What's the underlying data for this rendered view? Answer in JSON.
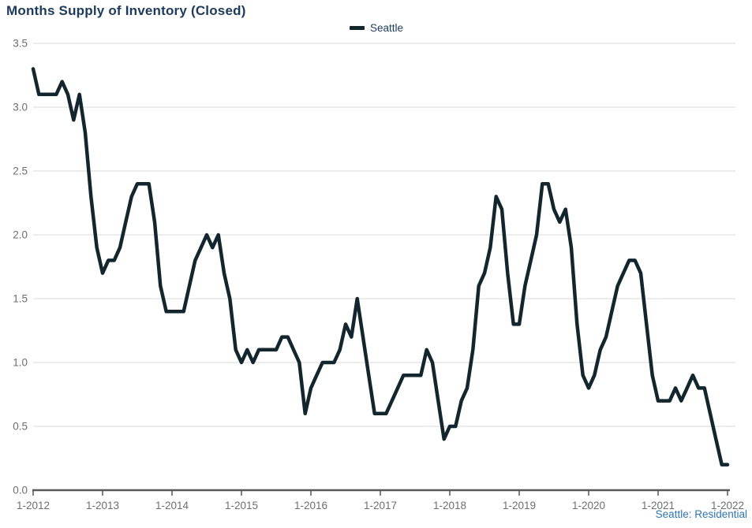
{
  "header": {
    "title": "Months Supply of Inventory (Closed)"
  },
  "legend": {
    "label": "Seattle"
  },
  "footer": {
    "label": "Seattle: Residential"
  },
  "colors": {
    "series": "#13262e",
    "title": "#1d3a5e",
    "legend_text": "#1e3a5f",
    "footer_text": "#2e74b5",
    "grid": "#d9d9d9",
    "axis": "#595959",
    "tick_label": "#6e6e6e",
    "background": "#ffffff"
  },
  "chart_data": {
    "type": "line",
    "title": "Months Supply of Inventory (Closed)",
    "series": [
      {
        "name": "Seattle",
        "values": [
          3.3,
          3.1,
          3.1,
          3.1,
          3.1,
          3.2,
          3.1,
          2.9,
          3.1,
          2.8,
          2.3,
          1.9,
          1.7,
          1.8,
          1.8,
          1.9,
          2.1,
          2.3,
          2.4,
          2.4,
          2.4,
          2.1,
          1.6,
          1.4,
          1.4,
          1.4,
          1.4,
          1.6,
          1.8,
          1.9,
          2.0,
          1.9,
          2.0,
          1.7,
          1.5,
          1.1,
          1.0,
          1.1,
          1.0,
          1.1,
          1.1,
          1.1,
          1.1,
          1.2,
          1.2,
          1.1,
          1.0,
          0.6,
          0.8,
          0.9,
          1.0,
          1.0,
          1.0,
          1.1,
          1.3,
          1.2,
          1.5,
          1.2,
          0.9,
          0.6,
          0.6,
          0.6,
          0.7,
          0.8,
          0.9,
          0.9,
          0.9,
          0.9,
          1.1,
          1.0,
          0.7,
          0.4,
          0.5,
          0.5,
          0.7,
          0.8,
          1.1,
          1.6,
          1.7,
          1.9,
          2.3,
          2.2,
          1.7,
          1.3,
          1.3,
          1.6,
          1.8,
          2.0,
          2.4,
          2.4,
          2.2,
          2.1,
          2.2,
          1.9,
          1.3,
          0.9,
          0.8,
          0.9,
          1.1,
          1.2,
          1.4,
          1.6,
          1.7,
          1.8,
          1.8,
          1.7,
          1.3,
          0.9,
          0.7,
          0.7,
          0.7,
          0.8,
          0.7,
          0.8,
          0.9,
          0.8,
          0.8,
          0.6,
          0.4,
          0.2,
          0.2
        ]
      }
    ],
    "x_frequency": "monthly",
    "x_range": [
      "1-2012",
      "1-2022"
    ],
    "x_tick_labels": [
      "1-2012",
      "1-2013",
      "1-2014",
      "1-2015",
      "1-2016",
      "1-2017",
      "1-2018",
      "1-2019",
      "1-2020",
      "1-2021",
      "1-2022"
    ],
    "y_tick_labels": [
      "0.0",
      "0.5",
      "1.0",
      "1.5",
      "2.0",
      "2.5",
      "3.0",
      "3.5"
    ],
    "ylim": [
      0,
      3.5
    ],
    "grid": "horizontal",
    "legend_position": "top-center"
  }
}
